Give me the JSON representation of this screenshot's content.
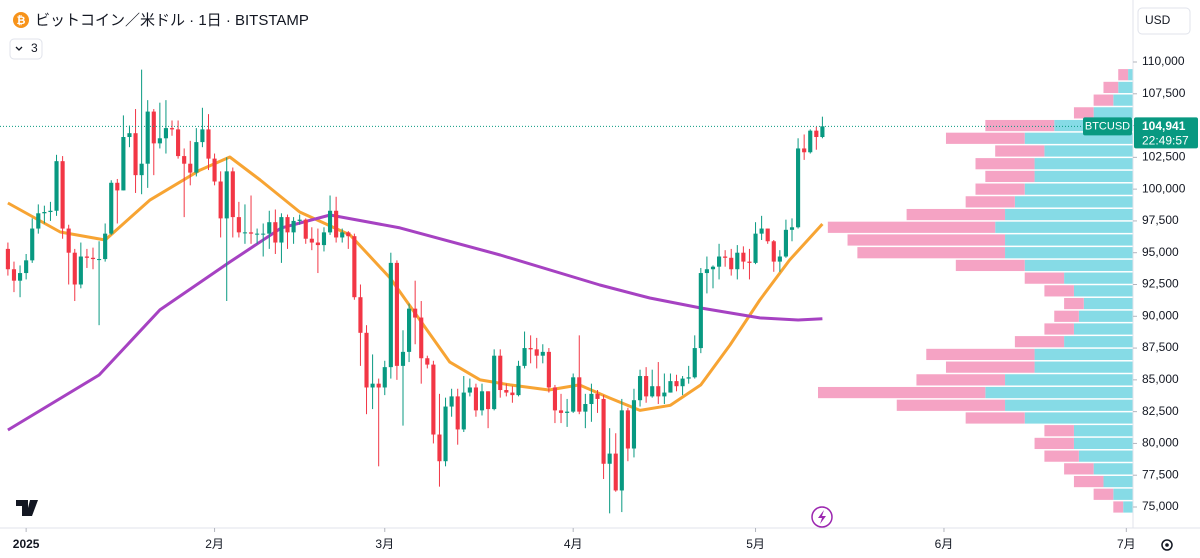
{
  "header": {
    "symbol_title": "ビットコイン／米ドル · 1日 · BITSTAMP",
    "indicator_count": 3,
    "currency": "USD"
  },
  "chart_data": {
    "type": "candlestick",
    "up_color": "#089981",
    "down_color": "#f23645",
    "ohlc": {
      "open": [
        95300,
        93700,
        92800,
        93400,
        94400,
        96900,
        98100,
        98200,
        98300,
        102200,
        96900,
        95000,
        92500,
        94700,
        94600,
        94500,
        94500,
        96500,
        100500,
        99900,
        104100,
        104400,
        101100,
        102000,
        106100,
        103600,
        104000,
        104800,
        104700,
        102600,
        102000,
        101300,
        103700,
        104700,
        102400,
        100600,
        97700,
        101400,
        97800,
        96600,
        96600,
        96500,
        96500,
        96500,
        97400,
        95800,
        97800,
        96600,
        97500,
        97600,
        96100,
        95800,
        95600,
        96600,
        98300,
        96200,
        96600,
        96300,
        91500,
        88700,
        84400,
        84700,
        84400,
        86000,
        94200,
        86100,
        87200,
        90600,
        89900,
        86700,
        86200,
        80700,
        78600,
        82900,
        83700,
        81100,
        84000,
        84400,
        82600,
        84100,
        82700,
        86900,
        84200,
        84000,
        83800,
        86100,
        87500,
        87400,
        86900,
        87200,
        84400,
        82600,
        82400,
        82500,
        85200,
        82500,
        83100,
        83900,
        83500,
        78400,
        79200,
        76300,
        82600,
        79600,
        83400,
        85300,
        83700,
        84500,
        83700,
        84000,
        84900,
        84500,
        85100,
        85200,
        87500,
        93400,
        93700,
        93900,
        94700,
        94600,
        93700,
        95000,
        94300,
        94200,
        96500,
        96900,
        95900,
        94300,
        94700,
        96800,
        97000,
        103200,
        102900,
        104600,
        104100
      ],
      "high": [
        95800,
        94300,
        94000,
        94900,
        97700,
        98800,
        98700,
        99000,
        102700,
        102600,
        97200,
        95300,
        95800,
        95300,
        95400,
        95900,
        97300,
        100700,
        100800,
        105800,
        105000,
        106300,
        109400,
        107000,
        106300,
        106800,
        107000,
        105400,
        105400,
        103200,
        103800,
        104800,
        106400,
        105900,
        102800,
        101400,
        102500,
        101700,
        99000,
        98800,
        99500,
        96900,
        97300,
        98300,
        98400,
        98100,
        98000,
        97800,
        98000,
        97700,
        97000,
        96900,
        97000,
        99500,
        99400,
        96900,
        96700,
        96500,
        92500,
        89300,
        87000,
        85100,
        86500,
        95000,
        94400,
        88900,
        91000,
        92800,
        91200,
        86900,
        86500,
        83900,
        83600,
        84300,
        84300,
        85300,
        85100,
        84700,
        84700,
        84100,
        87400,
        87400,
        84700,
        84500,
        86500,
        88800,
        88500,
        88300,
        87800,
        87500,
        84600,
        83900,
        83500,
        85500,
        88500,
        83900,
        84700,
        84200,
        83800,
        81200,
        80800,
        83500,
        82800,
        84300,
        85800,
        86000,
        85800,
        86400,
        85500,
        85500,
        85400,
        85300,
        86100,
        88500,
        93800,
        94700,
        94000,
        95700,
        95200,
        95300,
        95600,
        95500,
        95300,
        97400,
        97900,
        96900,
        96000,
        95200,
        97600,
        97700,
        104000,
        104300,
        104700,
        104900,
        105700
      ],
      "low": [
        93200,
        91900,
        91500,
        92900,
        94200,
        96500,
        97300,
        97500,
        97900,
        96100,
        92500,
        91200,
        92200,
        93800,
        93700,
        89300,
        94300,
        96400,
        97300,
        99900,
        103300,
        99700,
        99600,
        100100,
        101100,
        103200,
        102800,
        104200,
        102400,
        97800,
        100300,
        101000,
        103300,
        101500,
        100300,
        96200,
        91200,
        96200,
        96200,
        95700,
        95700,
        95700,
        94700,
        95300,
        94900,
        94200,
        95300,
        95700,
        97200,
        95700,
        95200,
        93400,
        95100,
        96400,
        95800,
        95800,
        95300,
        91300,
        86100,
        82300,
        82700,
        78200,
        83800,
        85100,
        85000,
        81400,
        86400,
        87800,
        84700,
        85900,
        80000,
        76600,
        78200,
        82100,
        79900,
        80900,
        83700,
        82100,
        82200,
        81200,
        82600,
        83600,
        83700,
        83200,
        83700,
        85900,
        86300,
        85900,
        86300,
        84000,
        81600,
        81600,
        81300,
        82400,
        82300,
        81200,
        81700,
        82400,
        77200,
        74500,
        76200,
        74600,
        78600,
        78900,
        82900,
        83200,
        83600,
        83100,
        83100,
        84000,
        84100,
        83800,
        84700,
        85100,
        87100,
        91800,
        92200,
        92900,
        93900,
        93200,
        92900,
        93700,
        92900,
        94100,
        96000,
        95700,
        93500,
        93500,
        94600,
        95900,
        96900,
        102300,
        102800,
        103100,
        104000
      ],
      "close": [
        93700,
        92800,
        93400,
        94400,
        96900,
        98100,
        98200,
        98300,
        102200,
        96900,
        95000,
        92500,
        94700,
        94600,
        94500,
        94500,
        96500,
        100500,
        99900,
        104100,
        104400,
        101100,
        102000,
        106100,
        103600,
        104000,
        104800,
        104700,
        102600,
        102000,
        101300,
        103700,
        104700,
        102400,
        100600,
        97700,
        101400,
        97800,
        96600,
        96600,
        96500,
        96500,
        96500,
        97400,
        95800,
        97800,
        96600,
        97500,
        97600,
        96100,
        95800,
        95600,
        96600,
        98300,
        96200,
        96600,
        96300,
        91500,
        88700,
        84400,
        84700,
        84400,
        86000,
        94200,
        86100,
        87200,
        90600,
        89900,
        86700,
        86200,
        80700,
        78600,
        82900,
        83700,
        81100,
        84000,
        84400,
        82600,
        84100,
        82700,
        86900,
        84200,
        84000,
        83800,
        86100,
        87500,
        87400,
        86900,
        87200,
        84400,
        82600,
        82400,
        82500,
        85200,
        82500,
        83100,
        83900,
        83500,
        78400,
        79200,
        76300,
        82600,
        79600,
        83400,
        85300,
        83700,
        84500,
        83700,
        84000,
        84900,
        84500,
        85100,
        85200,
        87500,
        93400,
        93700,
        93900,
        94700,
        94600,
        93700,
        95000,
        94300,
        94200,
        96500,
        96900,
        95900,
        94300,
        94700,
        96800,
        97000,
        103200,
        102900,
        104600,
        104100,
        104941
      ]
    },
    "lines": [
      {
        "color": "#f7a433",
        "x": [
          0,
          8.6,
          16,
          23.4,
          31.6,
          36.5,
          41.5,
          48,
          56.3,
          62.9,
          67.8,
          72.7,
          77.7,
          82.6,
          89,
          94,
          99,
          104,
          109,
          114,
          118.8,
          123.7,
          128.6,
          134
        ],
        "values": [
          98910,
          96630,
          96000,
          99150,
          101500,
          102530,
          100720,
          98200,
          96390,
          93000,
          89700,
          86400,
          85000,
          84600,
          84200,
          84600,
          83570,
          82600,
          83000,
          84600,
          87740,
          91280,
          94430,
          97260
        ]
      },
      {
        "color": "#a642c2",
        "x": [
          0,
          15,
          25,
          36.5,
          45,
          53,
          64.5,
          81,
          97.4,
          105.6,
          114,
          123.7,
          130,
          134
        ],
        "values": [
          81056,
          85380,
          90500,
          94270,
          96950,
          97966,
          96950,
          94820,
          92460,
          91440,
          90650,
          89870,
          89710,
          89800
        ]
      }
    ],
    "xlim": [
      -1.3,
      185.1
    ],
    "xticks": [
      {
        "value": 3,
        "label": "2025"
      },
      {
        "value": 34,
        "label": "2月"
      },
      {
        "value": 62,
        "label": "3月"
      },
      {
        "value": 93,
        "label": "4月"
      },
      {
        "value": 123,
        "label": "5月"
      },
      {
        "value": 154,
        "label": "6月"
      },
      {
        "value": 184,
        "label": "7月"
      }
    ],
    "ylim": [
      73348,
      114876
    ],
    "yticks": [
      {
        "value": 75000,
        "label": "75,000"
      },
      {
        "value": 77500,
        "label": "77,500"
      },
      {
        "value": 80000,
        "label": "80,000"
      },
      {
        "value": 82500,
        "label": "82,500"
      },
      {
        "value": 85000,
        "label": "85,000"
      },
      {
        "value": 87500,
        "label": "87,500"
      },
      {
        "value": 90000,
        "label": "90,000"
      },
      {
        "value": 92500,
        "label": "92,500"
      },
      {
        "value": 95000,
        "label": "95,000"
      },
      {
        "value": 97500,
        "label": "97,500"
      },
      {
        "value": 100000,
        "label": "100,000"
      },
      {
        "value": 102500,
        "label": "102,500"
      },
      {
        "value": 105000,
        "label": "105,000"
      },
      {
        "value": 107500,
        "label": "107,500"
      },
      {
        "value": 110000,
        "label": "110,000"
      }
    ],
    "grid": false,
    "price_label": {
      "symbol": "BTCUSD",
      "value": 104941,
      "label": "104,941",
      "countdown": "22:49:57",
      "color": "#089981"
    },
    "volume_profile": {
      "up_color": "#86dbe6",
      "down_color": "#f5a3c4",
      "bin_size": 1000,
      "prices": [
        75000,
        76000,
        77000,
        78000,
        79000,
        80000,
        81000,
        82000,
        83000,
        84000,
        85000,
        86000,
        87000,
        88000,
        89000,
        90000,
        91000,
        92000,
        93000,
        94000,
        95000,
        96000,
        97000,
        98000,
        99000,
        100000,
        101000,
        102000,
        103000,
        104000,
        105000,
        106000,
        107000,
        108000,
        109000
      ],
      "up": [
        10,
        20,
        30,
        40,
        55,
        60,
        60,
        110,
        130,
        150,
        130,
        100,
        100,
        70,
        60,
        55,
        50,
        60,
        70,
        110,
        130,
        130,
        140,
        130,
        120,
        110,
        100,
        100,
        90,
        110,
        80,
        40,
        20,
        15,
        5
      ],
      "down": [
        10,
        20,
        30,
        30,
        35,
        40,
        30,
        60,
        110,
        170,
        90,
        90,
        110,
        50,
        30,
        25,
        20,
        30,
        40,
        70,
        150,
        160,
        170,
        100,
        50,
        50,
        50,
        60,
        50,
        80,
        70,
        20,
        20,
        15,
        10
      ]
    }
  }
}
